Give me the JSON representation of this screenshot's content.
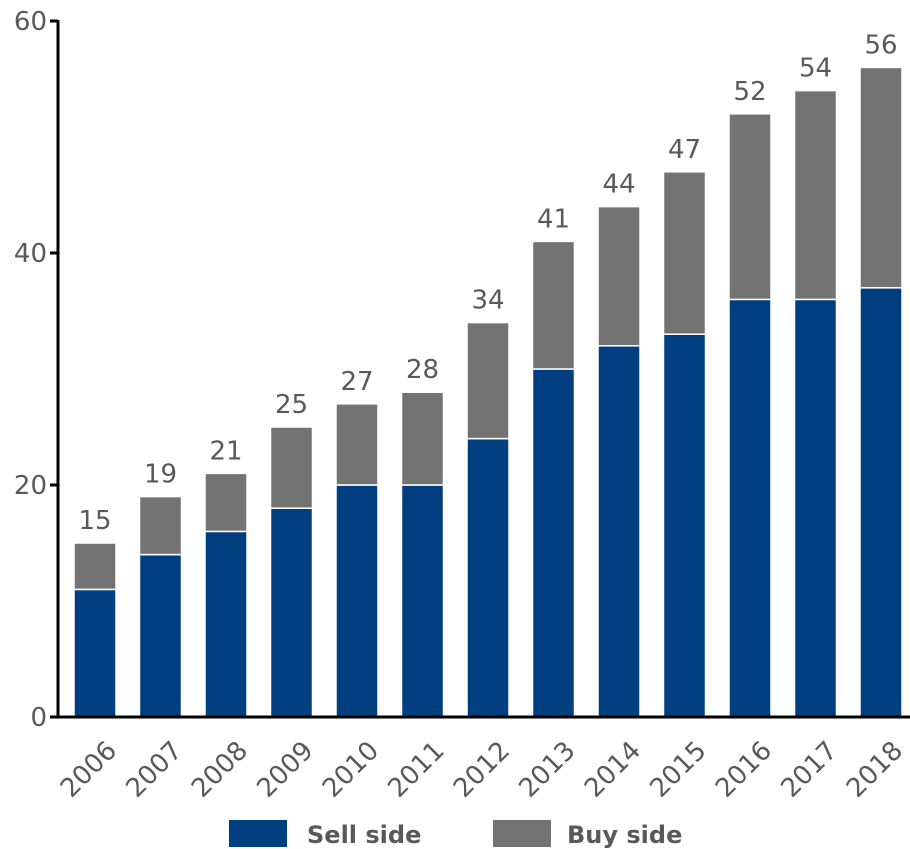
{
  "chart_data": {
    "type": "bar",
    "stacked": true,
    "categories": [
      "2006",
      "2007",
      "2008",
      "2009",
      "2010",
      "2011",
      "2012",
      "2013",
      "2014",
      "2015",
      "2016",
      "2017",
      "2018"
    ],
    "series": [
      {
        "name": "Sell side",
        "color": "#003f7f",
        "values": [
          11,
          14,
          16,
          18,
          20,
          20,
          24,
          30,
          32,
          33,
          36,
          36,
          37
        ]
      },
      {
        "name": "Buy side",
        "color": "#737373",
        "values": [
          4,
          5,
          5,
          7,
          7,
          8,
          10,
          11,
          12,
          14,
          16,
          18,
          19
        ]
      }
    ],
    "totals": [
      15,
      19,
      21,
      25,
      27,
      28,
      34,
      41,
      44,
      47,
      52,
      54,
      56
    ],
    "yticks": [
      0,
      20,
      40,
      60
    ],
    "ylim": [
      0,
      60
    ],
    "title": "",
    "xlabel": "",
    "ylabel": "",
    "grid": false,
    "legend_position": "bottom"
  }
}
